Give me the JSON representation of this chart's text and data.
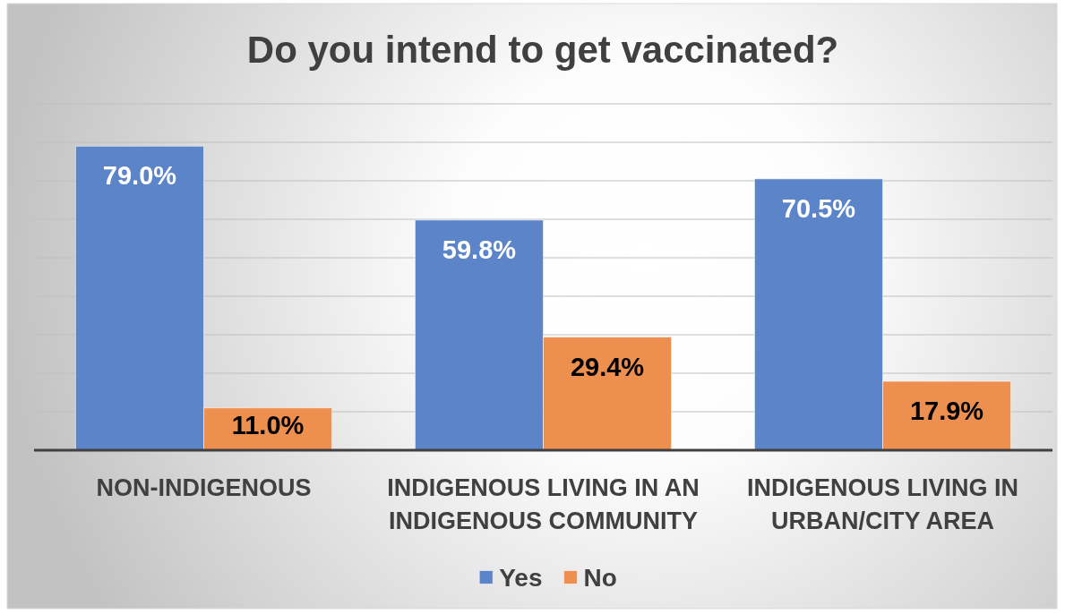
{
  "chart_data": {
    "type": "bar",
    "title": "Do you intend to get vaccinated?",
    "categories": [
      "NON-INDIGENOUS",
      "INDIGENOUS LIVING IN AN INDIGENOUS COMMUNITY",
      "INDIGENOUS LIVING IN URBAN/CITY AREA"
    ],
    "series": [
      {
        "name": "Yes",
        "color": "#5b84c9",
        "values": [
          79.0,
          59.8,
          70.5
        ],
        "value_labels": [
          "79.0%",
          "59.8%",
          "70.5%"
        ]
      },
      {
        "name": "No",
        "color": "#ed8f4e",
        "values": [
          11.0,
          29.4,
          17.9
        ],
        "value_labels": [
          "11.0%",
          "29.4%",
          "17.9%"
        ]
      }
    ],
    "ylim": [
      0,
      90
    ],
    "yticks": [
      0,
      10,
      20,
      30,
      40,
      50,
      60,
      70,
      80,
      90
    ],
    "grid": "y",
    "tick_labels": "x",
    "legend": "bottom"
  }
}
